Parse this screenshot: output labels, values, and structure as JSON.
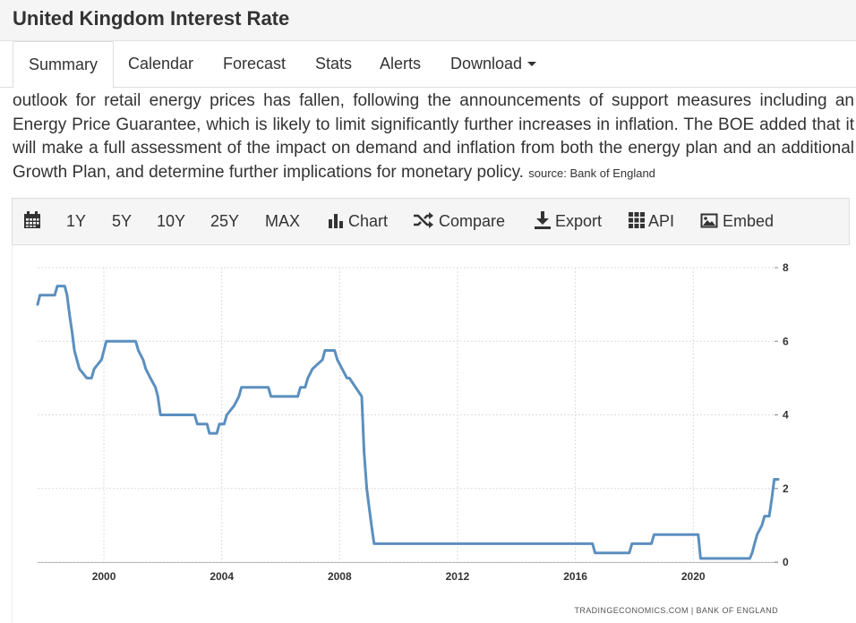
{
  "page": {
    "title": "United Kingdom Interest Rate"
  },
  "tabs": [
    {
      "label": "Summary",
      "active": true
    },
    {
      "label": "Calendar"
    },
    {
      "label": "Forecast"
    },
    {
      "label": "Stats"
    },
    {
      "label": "Alerts"
    },
    {
      "label": "Download"
    }
  ],
  "summary": {
    "text": "outlook for retail energy prices has fallen, following the announcements of support measures including an Energy Price Guarantee, which is likely to limit significantly further increases in inflation. The BOE added that it will make a full assessment of the impact on demand and inflation from both the energy plan and an additional Growth Plan, and determine further implications for monetary policy.",
    "source": "source: Bank of England"
  },
  "toolbar": {
    "calendar_icon": "calendar-icon",
    "ranges": [
      "1Y",
      "5Y",
      "10Y",
      "25Y",
      "MAX"
    ],
    "chart_label": "Chart",
    "compare_label": "Compare",
    "export_label": "Export",
    "api_label": "API",
    "embed_label": "Embed"
  },
  "colors": {
    "line": "#5b8fbf",
    "grid": "#dcdcdc",
    "toolbar_bg": "#f5f5f5"
  },
  "chart_data": {
    "type": "line",
    "title": "",
    "xlabel": "",
    "ylabel": "",
    "xlim": [
      1997.75,
      2022.88
    ],
    "ylim": [
      0,
      8
    ],
    "x_ticks": [
      2000,
      2004,
      2008,
      2012,
      2016,
      2020
    ],
    "x_tick_labels": [
      "2000",
      "2004",
      "2008",
      "2012",
      "2016",
      "2020"
    ],
    "y_ticks": [
      0,
      2,
      4,
      6,
      8
    ],
    "y_tick_labels": [
      "0",
      "2",
      "4",
      "6",
      "8"
    ],
    "grid": true,
    "credit": "TRADINGECONOMICS.COM  |  BANK OF ENGLAND",
    "series": [
      {
        "x": [
          1997.75,
          1997.83,
          1998.33,
          1998.42,
          1998.67,
          1998.75,
          1998.83,
          1998.92,
          1999.0,
          1999.08,
          1999.17,
          1999.42,
          1999.58,
          1999.67,
          1999.92,
          2000.08,
          2001.08,
          2001.17,
          2001.33,
          2001.42,
          2001.58,
          2001.75,
          2001.83,
          2001.92,
          2003.08,
          2003.17,
          2003.5,
          2003.58,
          2003.83,
          2003.92,
          2004.08,
          2004.17,
          2004.42,
          2004.58,
          2004.67,
          2005.58,
          2005.67,
          2006.58,
          2006.67,
          2006.83,
          2006.92,
          2007.08,
          2007.42,
          2007.5,
          2007.83,
          2007.92,
          2008.25,
          2008.33,
          2008.75,
          2008.83,
          2008.92,
          2009.0,
          2009.08,
          2009.17,
          2016.58,
          2016.67,
          2017.83,
          2017.92,
          2018.58,
          2018.67,
          2020.17,
          2020.25,
          2021.92,
          2022.0,
          2022.08,
          2022.17,
          2022.33,
          2022.42,
          2022.58,
          2022.67,
          2022.75,
          2022.88
        ],
        "y": [
          7.0,
          7.25,
          7.25,
          7.5,
          7.5,
          7.25,
          6.75,
          6.25,
          5.75,
          5.5,
          5.25,
          5.0,
          5.0,
          5.25,
          5.5,
          6.0,
          6.0,
          5.75,
          5.5,
          5.25,
          5.0,
          4.75,
          4.5,
          4.0,
          4.0,
          3.75,
          3.75,
          3.5,
          3.5,
          3.75,
          3.75,
          4.0,
          4.25,
          4.5,
          4.75,
          4.75,
          4.5,
          4.5,
          4.75,
          4.75,
          5.0,
          5.25,
          5.5,
          5.75,
          5.75,
          5.5,
          5.0,
          5.0,
          4.5,
          3.0,
          2.0,
          1.5,
          1.0,
          0.5,
          0.5,
          0.25,
          0.25,
          0.5,
          0.5,
          0.75,
          0.75,
          0.1,
          0.1,
          0.25,
          0.5,
          0.75,
          1.0,
          1.25,
          1.25,
          1.75,
          2.25,
          2.25
        ]
      }
    ]
  }
}
